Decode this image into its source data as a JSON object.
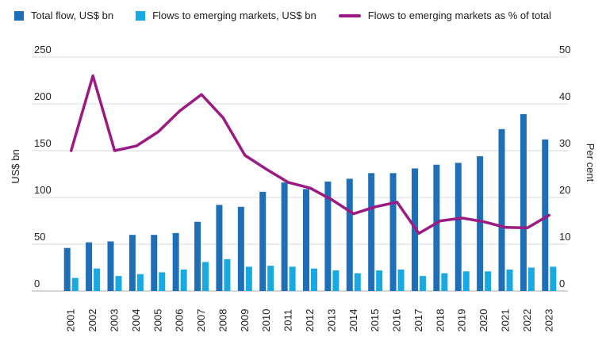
{
  "colors": {
    "total": "#1F6FB8",
    "emerging": "#17A9E1",
    "pct": "#9B1B82",
    "grid": "#D9D9D9",
    "text": "#222222"
  },
  "legend": [
    {
      "label": "Total flow, US$ bn",
      "kind": "bar",
      "color": "#1F6FB8"
    },
    {
      "label": "Flows to emerging markets, US$ bn",
      "kind": "bar",
      "color": "#17A9E1"
    },
    {
      "label": "Flows to emerging markets as % of total",
      "kind": "line",
      "color": "#9B1B82"
    }
  ],
  "chart_data": {
    "type": "bar",
    "categories": [
      "2001",
      "2002",
      "2003",
      "2004",
      "2005",
      "2006",
      "2007",
      "2008",
      "2009",
      "2010",
      "2011",
      "2012",
      "2013",
      "2014",
      "2015",
      "2016",
      "2017",
      "2018",
      "2019",
      "2020",
      "2021",
      "2022",
      "2023"
    ],
    "series": [
      {
        "name": "Total flow, US$ bn",
        "type": "bar",
        "axis": "left",
        "values": [
          46,
          52,
          53,
          60,
          60,
          62,
          74,
          92,
          90,
          106,
          116,
          109,
          117,
          120,
          126,
          126,
          131,
          135,
          137,
          144,
          173,
          189,
          162
        ]
      },
      {
        "name": "Flows to emerging markets, US$ bn",
        "type": "bar",
        "axis": "left",
        "values": [
          14,
          24,
          16,
          18,
          20,
          23,
          31,
          34,
          26,
          27,
          26,
          24,
          22,
          19,
          22,
          23,
          16,
          19,
          21,
          21,
          23,
          25,
          26
        ]
      },
      {
        "name": "Flows to emerging markets as % of total",
        "type": "line",
        "axis": "right",
        "values": [
          30,
          46,
          30,
          31,
          34,
          38.5,
          42,
          37,
          29,
          26,
          23.2,
          22,
          19.5,
          16.5,
          18,
          19,
          12.3,
          15,
          15.6,
          14.8,
          13.6,
          13.5,
          16.2
        ]
      }
    ],
    "ylabel": "US$ bn",
    "ylabel_right": "Per cent",
    "ylim": [
      0,
      250
    ],
    "ylim_right": [
      0,
      50
    ],
    "yticks": [
      0,
      50,
      100,
      150,
      200,
      250
    ],
    "yticks_right": [
      0,
      10,
      20,
      30,
      40,
      50
    ],
    "grid": true,
    "legend_position": "top"
  }
}
